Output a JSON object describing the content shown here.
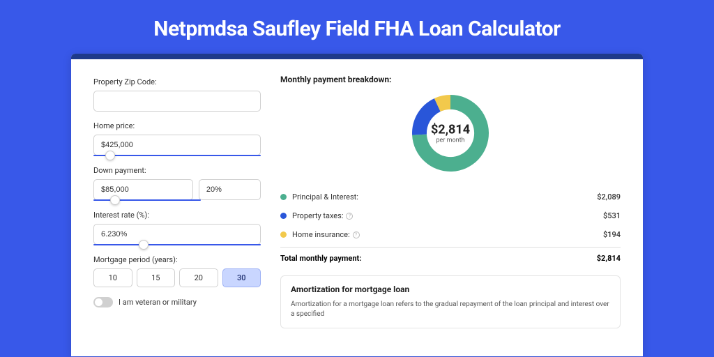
{
  "page": {
    "title": "Netpmdsa Saufley Field FHA Loan Calculator",
    "background_color": "#3858e9"
  },
  "form": {
    "zip": {
      "label": "Property Zip Code:",
      "value": ""
    },
    "home_price": {
      "label": "Home price:",
      "value": "$425,000",
      "slider_pct": 10
    },
    "down_payment": {
      "label": "Down payment:",
      "value": "$85,000",
      "pct_value": "20%",
      "slider_pct": 20
    },
    "interest_rate": {
      "label": "Interest rate (%):",
      "value": "6.230%",
      "slider_pct": 30
    },
    "mortgage_period": {
      "label": "Mortgage period (years):",
      "options": [
        "10",
        "15",
        "20",
        "30"
      ],
      "selected": "30"
    },
    "veteran": {
      "label": "I am veteran or military",
      "checked": false
    }
  },
  "breakdown": {
    "title": "Monthly payment breakdown:",
    "donut": {
      "amount": "$2,814",
      "subtext": "per month",
      "slices": [
        {
          "key": "principal_interest",
          "value": 2089,
          "color": "#4caf8f"
        },
        {
          "key": "property_taxes",
          "value": 531,
          "color": "#2956d9"
        },
        {
          "key": "home_insurance",
          "value": 194,
          "color": "#f2c94c"
        }
      ],
      "background_color": "#ffffff",
      "inner_radius_ratio": 0.62
    },
    "legend": [
      {
        "label": "Principal & Interest:",
        "value": "$2,089",
        "color": "#4caf8f",
        "has_info": false
      },
      {
        "label": "Property taxes:",
        "value": "$531",
        "color": "#2956d9",
        "has_info": true
      },
      {
        "label": "Home insurance:",
        "value": "$194",
        "color": "#f2c94c",
        "has_info": true
      }
    ],
    "total": {
      "label": "Total monthly payment:",
      "value": "$2,814"
    }
  },
  "amortization": {
    "title": "Amortization for mortgage loan",
    "text": "Amortization for a mortgage loan refers to the gradual repayment of the loan principal and interest over a specified"
  }
}
